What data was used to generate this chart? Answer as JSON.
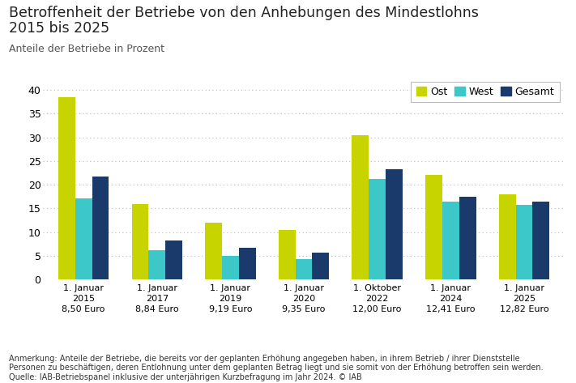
{
  "title_line1": "Betroffenheit der Betriebe von den Anhebungen des Mindestlohns",
  "title_line2": "2015 bis 2025",
  "subtitle": "Anteile der Betriebe in Prozent",
  "categories": [
    "1. Januar\n2015\n8,50 Euro",
    "1. Januar\n2017\n8,84 Euro",
    "1. Januar\n2019\n9,19 Euro",
    "1. Januar\n2020\n9,35 Euro",
    "1. Oktober\n2022\n12,00 Euro",
    "1. Januar\n2024\n12,41 Euro",
    "1. Januar\n2025\n12,82 Euro"
  ],
  "ost": [
    38.5,
    16.0,
    12.0,
    10.5,
    30.5,
    22.0,
    18.0
  ],
  "west": [
    17.2,
    6.2,
    5.0,
    4.4,
    21.3,
    16.5,
    15.8
  ],
  "gesamt": [
    21.7,
    8.2,
    6.7,
    5.7,
    23.3,
    17.5,
    16.5
  ],
  "color_ost": "#c8d400",
  "color_west": "#3cc8c8",
  "color_gesamt": "#1a3a6b",
  "ylim": [
    0,
    42
  ],
  "yticks": [
    0,
    5,
    10,
    15,
    20,
    25,
    30,
    35,
    40
  ],
  "legend_labels": [
    "Ost",
    "West",
    "Gesamt"
  ],
  "footnote1": "Anmerkung: Anteile der Betriebe, die bereits vor der geplanten Erhöhung angegeben haben, in ihrem Betrieb / ihrer Dienststelle",
  "footnote2": "Personen zu beschäftigen, deren Entlohnung unter dem geplanten Betrag liegt und sie somit von der Erhöhung betroffen sein werden.",
  "footnote3": "Quelle: IAB-Betriebspanel inklusive der unterjährigen Kurzbefragung im Jahr 2024. © IAB",
  "bg_color": "#ffffff",
  "grid_color": "#bbbbbb"
}
